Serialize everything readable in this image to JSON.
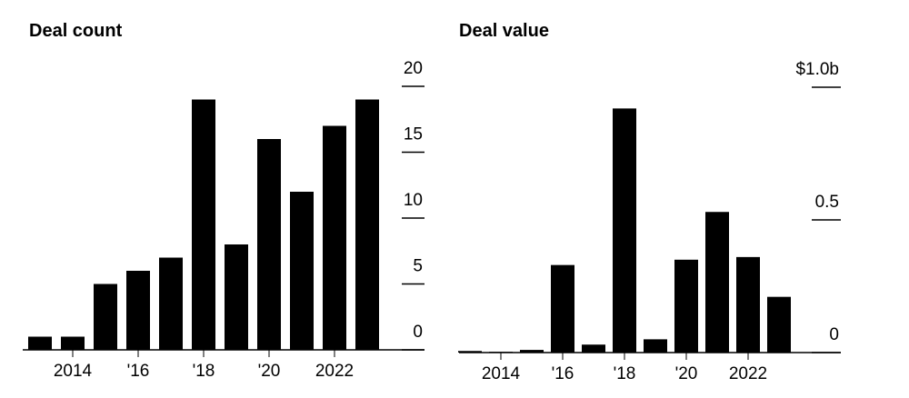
{
  "chart_data": [
    {
      "type": "bar",
      "title": "Deal count",
      "categories": [
        null,
        "2014",
        null,
        "'16",
        null,
        "'18",
        null,
        "'20",
        null,
        "2022",
        null
      ],
      "values": [
        1,
        1,
        5,
        6,
        7,
        19,
        8,
        16,
        12,
        17,
        19
      ],
      "color": "#000000",
      "ylim": [
        0,
        20
      ],
      "yticks": [
        0,
        5,
        10,
        15,
        20
      ]
    },
    {
      "type": "bar",
      "title": "Deal value",
      "categories": [
        null,
        "2014",
        null,
        "'16",
        null,
        "'18",
        null,
        "'20",
        null,
        "2022",
        null
      ],
      "values": [
        0.006,
        0.003,
        0.01,
        0.33,
        0.03,
        0.92,
        0.05,
        0.35,
        0.53,
        0.36,
        0.21
      ],
      "color": "#000000",
      "ylim": [
        0,
        1
      ],
      "yticks": [
        0,
        0.5,
        {
          "value": 1,
          "label": "$1.0b"
        }
      ]
    }
  ]
}
